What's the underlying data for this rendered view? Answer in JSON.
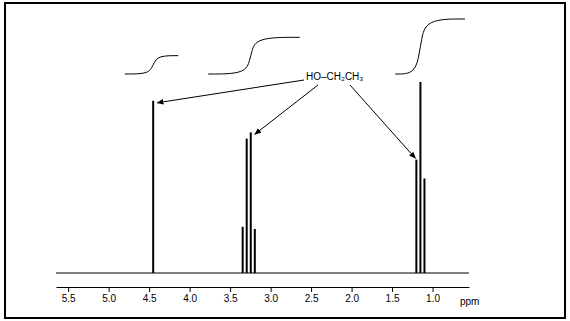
{
  "chart_data": {
    "type": "spectrum",
    "x": [
      4.45,
      3.345,
      3.295,
      3.245,
      3.195,
      1.2,
      1.15,
      1.1
    ],
    "values": [
      82,
      22,
      64,
      67,
      21,
      54,
      91,
      45
    ],
    "color": "#000000",
    "xlim": [
      5.65,
      0.55
    ],
    "xticks": [
      5.5,
      {
        "value": 5,
        "label": "5.0"
      },
      4.5,
      {
        "value": 4,
        "label": "4.0"
      },
      3.5,
      {
        "value": 3,
        "label": "3.0"
      },
      2.5,
      {
        "value": 2,
        "label": "2.0"
      },
      1.5,
      {
        "value": 1,
        "label": "1.0"
      }
    ],
    "xlabel": "ppm",
    "ylim": [
      0,
      100
    ],
    "tick_labels": "x",
    "annotation": "HO–CH₂CH₃",
    "integrals": {
      "from": [
        4.8,
        3.77,
        1.46
      ],
      "to": [
        4.14,
        2.64,
        0.6
      ],
      "values": [
        1,
        2,
        3
      ]
    }
  }
}
